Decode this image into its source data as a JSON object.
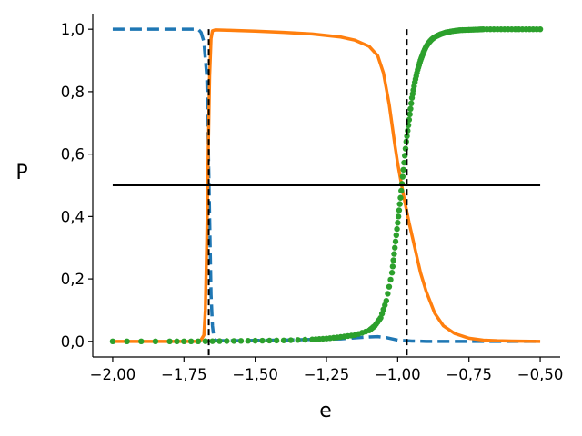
{
  "chart_data": {
    "type": "line",
    "xlabel": "e",
    "ylabel": "P",
    "xlim": [
      -2.07,
      -0.43
    ],
    "ylim": [
      -0.05,
      1.05
    ],
    "x_ticks": [
      -2.0,
      -1.75,
      -1.5,
      -1.25,
      -1.0,
      -0.75,
      -0.5
    ],
    "x_tick_labels": [
      "−2,00",
      "−1,75",
      "−1,50",
      "−1,25",
      "−1,00",
      "−0,75",
      "−0,50"
    ],
    "y_ticks": [
      0.0,
      0.2,
      0.4,
      0.6,
      0.8,
      1.0
    ],
    "y_tick_labels": [
      "0,0",
      "0,2",
      "0,4",
      "0,6",
      "0,8",
      "1,0"
    ],
    "grid": false,
    "series": [
      {
        "style": "dashed",
        "color": "#1f77b4",
        "x": [
          -2.0,
          -1.8,
          -1.7,
          -1.69,
          -1.68,
          -1.67,
          -1.665,
          -1.66,
          -1.655,
          -1.65,
          -1.645,
          -1.64,
          -1.6,
          -1.5,
          -1.4,
          -1.3,
          -1.2,
          -1.15,
          -1.1,
          -1.07,
          -1.04,
          -1.0,
          -0.95,
          -0.9,
          -0.8,
          -0.7,
          -0.6,
          -0.5
        ],
        "y": [
          1.0,
          1.0,
          1.0,
          0.99,
          0.96,
          0.85,
          0.65,
          0.4,
          0.15,
          0.05,
          0.01,
          0.003,
          0.002,
          0.003,
          0.004,
          0.006,
          0.008,
          0.011,
          0.014,
          0.015,
          0.012,
          0.004,
          0.001,
          0.0,
          0.0,
          0.0,
          0.0,
          0.0
        ]
      },
      {
        "style": "solid",
        "color": "#ff7f0e",
        "x": [
          -2.0,
          -1.8,
          -1.7,
          -1.69,
          -1.68,
          -1.675,
          -1.67,
          -1.665,
          -1.66,
          -1.655,
          -1.65,
          -1.64,
          -1.6,
          -1.5,
          -1.4,
          -1.3,
          -1.2,
          -1.15,
          -1.1,
          -1.07,
          -1.05,
          -1.03,
          -1.01,
          -1.0,
          -0.98,
          -0.96,
          -0.94,
          -0.92,
          -0.9,
          -0.87,
          -0.84,
          -0.8,
          -0.75,
          -0.7,
          -0.65,
          -0.6,
          -0.5
        ],
        "y": [
          0.0,
          0.0,
          0.0,
          0.005,
          0.02,
          0.1,
          0.32,
          0.6,
          0.85,
          0.97,
          0.995,
          0.998,
          0.997,
          0.994,
          0.99,
          0.985,
          0.975,
          0.965,
          0.945,
          0.915,
          0.86,
          0.76,
          0.63,
          0.57,
          0.47,
          0.38,
          0.3,
          0.22,
          0.16,
          0.09,
          0.05,
          0.025,
          0.01,
          0.004,
          0.002,
          0.001,
          0.0
        ]
      },
      {
        "style": "dots",
        "color": "#2ca02c",
        "x": [
          -2.0,
          -1.8,
          -1.7,
          -1.6,
          -1.5,
          -1.4,
          -1.3,
          -1.25,
          -1.2,
          -1.15,
          -1.1,
          -1.08,
          -1.06,
          -1.04,
          -1.02,
          -1.01,
          -1.0,
          -0.99,
          -0.98,
          -0.97,
          -0.96,
          -0.95,
          -0.94,
          -0.93,
          -0.92,
          -0.91,
          -0.9,
          -0.89,
          -0.88,
          -0.87,
          -0.85,
          -0.83,
          -0.8,
          -0.78,
          -0.75,
          -0.72,
          -0.7,
          -0.65,
          -0.6,
          -0.55,
          -0.5
        ],
        "y": [
          0.0,
          0.0,
          0.0,
          0.001,
          0.002,
          0.003,
          0.006,
          0.009,
          0.014,
          0.02,
          0.035,
          0.05,
          0.075,
          0.13,
          0.22,
          0.3,
          0.38,
          0.46,
          0.55,
          0.64,
          0.71,
          0.78,
          0.83,
          0.87,
          0.9,
          0.925,
          0.945,
          0.958,
          0.968,
          0.975,
          0.984,
          0.99,
          0.995,
          0.997,
          0.998,
          0.999,
          1.0,
          1.0,
          1.0,
          1.0,
          1.0
        ]
      }
    ],
    "reference_lines": [
      {
        "orientation": "horizontal",
        "value": 0.5,
        "from": -2.0,
        "to": -0.5,
        "style": "solid",
        "color": "#000000"
      },
      {
        "orientation": "vertical",
        "value": -1.663,
        "style": "dashed",
        "color": "#000000"
      },
      {
        "orientation": "vertical",
        "value": -0.968,
        "style": "dashed",
        "color": "#000000"
      }
    ]
  }
}
